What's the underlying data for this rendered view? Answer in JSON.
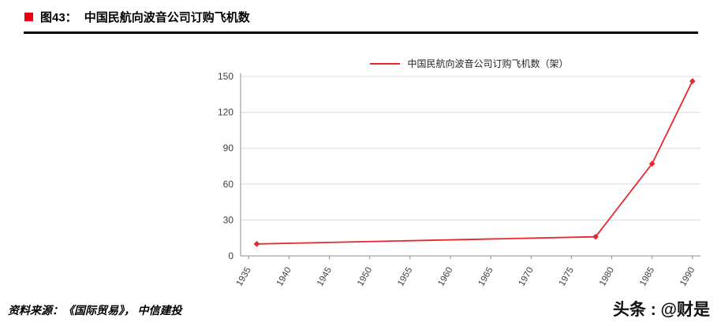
{
  "header": {
    "figure_label": "图43：",
    "title": "中国民航向波音公司订购飞机数"
  },
  "footer": {
    "source": "资料来源：《国际贸易》， 中信建投"
  },
  "watermark": {
    "text": "头条 : @财是"
  },
  "colors": {
    "accent_red": "#e60012",
    "line_color": "#e8262d",
    "grid": "#dcdcdc",
    "axis": "#8c8c8c"
  },
  "chart_data": {
    "type": "line",
    "title": "",
    "legend": "中国民航向波音公司订购飞机数（架）",
    "x": [
      1936,
      1978,
      1985,
      1990
    ],
    "values": [
      10,
      16,
      77,
      146
    ],
    "xticks": [
      1935,
      1940,
      1945,
      1950,
      1955,
      1960,
      1965,
      1970,
      1975,
      1980,
      1985,
      1990
    ],
    "yticks": [
      0,
      30,
      60,
      90,
      120,
      150
    ],
    "xlim": [
      1934,
      1991
    ],
    "ylim": [
      0,
      150
    ],
    "grid": true,
    "legend_position": "top",
    "xlabel": "",
    "ylabel": ""
  }
}
